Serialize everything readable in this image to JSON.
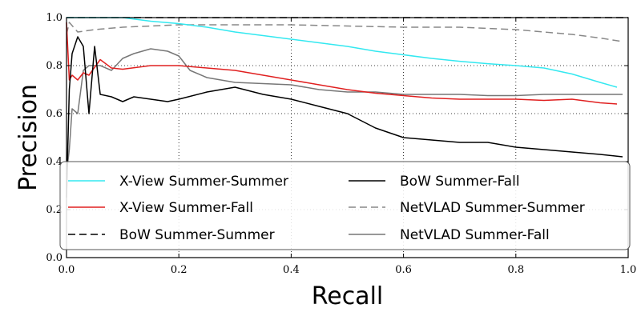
{
  "chart_data": {
    "type": "line",
    "title": "",
    "xlabel": "Recall",
    "ylabel": "Precision",
    "xlim": [
      0.0,
      1.0
    ],
    "ylim": [
      0.0,
      1.0
    ],
    "x_ticks": [
      "0.0",
      "0.2",
      "0.4",
      "0.6",
      "0.8",
      "1.0"
    ],
    "y_ticks": [
      "0.0",
      "0.2",
      "0.4",
      "0.6",
      "0.8",
      "1.0"
    ],
    "grid": true,
    "legend_position": "bottom",
    "series": [
      {
        "name": "X-View Summer-Summer",
        "color": "#33e8f0",
        "dash": "solid",
        "points": [
          [
            0.0,
            1.0
          ],
          [
            0.05,
            1.0
          ],
          [
            0.1,
            1.0
          ],
          [
            0.15,
            0.985
          ],
          [
            0.2,
            0.975
          ],
          [
            0.25,
            0.96
          ],
          [
            0.3,
            0.94
          ],
          [
            0.35,
            0.925
          ],
          [
            0.4,
            0.91
          ],
          [
            0.45,
            0.895
          ],
          [
            0.5,
            0.88
          ],
          [
            0.55,
            0.86
          ],
          [
            0.6,
            0.845
          ],
          [
            0.65,
            0.83
          ],
          [
            0.7,
            0.818
          ],
          [
            0.75,
            0.808
          ],
          [
            0.8,
            0.8
          ],
          [
            0.85,
            0.79
          ],
          [
            0.9,
            0.765
          ],
          [
            0.95,
            0.73
          ],
          [
            0.98,
            0.71
          ]
        ]
      },
      {
        "name": "X-View Summer-Fall",
        "color": "#e02020",
        "dash": "solid",
        "points": [
          [
            0.0,
            0.98
          ],
          [
            0.005,
            0.74
          ],
          [
            0.01,
            0.76
          ],
          [
            0.02,
            0.74
          ],
          [
            0.03,
            0.77
          ],
          [
            0.04,
            0.76
          ],
          [
            0.06,
            0.825
          ],
          [
            0.08,
            0.79
          ],
          [
            0.1,
            0.785
          ],
          [
            0.15,
            0.8
          ],
          [
            0.2,
            0.8
          ],
          [
            0.25,
            0.79
          ],
          [
            0.3,
            0.78
          ],
          [
            0.35,
            0.76
          ],
          [
            0.4,
            0.74
          ],
          [
            0.45,
            0.72
          ],
          [
            0.5,
            0.7
          ],
          [
            0.55,
            0.685
          ],
          [
            0.6,
            0.675
          ],
          [
            0.65,
            0.665
          ],
          [
            0.7,
            0.66
          ],
          [
            0.75,
            0.66
          ],
          [
            0.8,
            0.66
          ],
          [
            0.85,
            0.655
          ],
          [
            0.9,
            0.66
          ],
          [
            0.95,
            0.645
          ],
          [
            0.98,
            0.64
          ]
        ]
      },
      {
        "name": "BoW Summer-Summer",
        "color": "#000000",
        "dash": "dashed",
        "points": [
          [
            0.0,
            1.0
          ],
          [
            1.0,
            1.0
          ]
        ]
      },
      {
        "name": "BoW Summer-Fall",
        "color": "#000000",
        "dash": "solid",
        "points": [
          [
            0.0,
            0.25
          ],
          [
            0.005,
            0.7
          ],
          [
            0.01,
            0.85
          ],
          [
            0.02,
            0.92
          ],
          [
            0.03,
            0.88
          ],
          [
            0.04,
            0.6
          ],
          [
            0.05,
            0.88
          ],
          [
            0.06,
            0.68
          ],
          [
            0.08,
            0.67
          ],
          [
            0.1,
            0.65
          ],
          [
            0.12,
            0.67
          ],
          [
            0.15,
            0.66
          ],
          [
            0.18,
            0.65
          ],
          [
            0.2,
            0.66
          ],
          [
            0.25,
            0.69
          ],
          [
            0.3,
            0.71
          ],
          [
            0.35,
            0.68
          ],
          [
            0.4,
            0.66
          ],
          [
            0.45,
            0.63
          ],
          [
            0.5,
            0.6
          ],
          [
            0.55,
            0.54
          ],
          [
            0.6,
            0.5
          ],
          [
            0.65,
            0.49
          ],
          [
            0.7,
            0.48
          ],
          [
            0.75,
            0.48
          ],
          [
            0.8,
            0.46
          ],
          [
            0.85,
            0.45
          ],
          [
            0.9,
            0.44
          ],
          [
            0.95,
            0.43
          ],
          [
            0.99,
            0.42
          ]
        ]
      },
      {
        "name": "NetVLAD Summer-Summer",
        "color": "#888888",
        "dash": "dashed",
        "points": [
          [
            0.0,
            0.93
          ],
          [
            0.005,
            0.98
          ],
          [
            0.02,
            0.94
          ],
          [
            0.05,
            0.95
          ],
          [
            0.1,
            0.96
          ],
          [
            0.15,
            0.965
          ],
          [
            0.2,
            0.97
          ],
          [
            0.3,
            0.97
          ],
          [
            0.4,
            0.97
          ],
          [
            0.5,
            0.965
          ],
          [
            0.6,
            0.96
          ],
          [
            0.7,
            0.96
          ],
          [
            0.8,
            0.95
          ],
          [
            0.9,
            0.93
          ],
          [
            0.95,
            0.915
          ],
          [
            0.99,
            0.9
          ]
        ]
      },
      {
        "name": "NetVLAD Summer-Fall",
        "color": "#777777",
        "dash": "solid",
        "points": [
          [
            0.0,
            0.35
          ],
          [
            0.005,
            0.45
          ],
          [
            0.01,
            0.62
          ],
          [
            0.02,
            0.6
          ],
          [
            0.03,
            0.78
          ],
          [
            0.04,
            0.8
          ],
          [
            0.06,
            0.8
          ],
          [
            0.08,
            0.78
          ],
          [
            0.1,
            0.83
          ],
          [
            0.12,
            0.85
          ],
          [
            0.15,
            0.87
          ],
          [
            0.18,
            0.86
          ],
          [
            0.2,
            0.84
          ],
          [
            0.22,
            0.78
          ],
          [
            0.25,
            0.75
          ],
          [
            0.3,
            0.73
          ],
          [
            0.35,
            0.725
          ],
          [
            0.4,
            0.72
          ],
          [
            0.45,
            0.7
          ],
          [
            0.5,
            0.69
          ],
          [
            0.55,
            0.69
          ],
          [
            0.6,
            0.68
          ],
          [
            0.65,
            0.68
          ],
          [
            0.7,
            0.68
          ],
          [
            0.75,
            0.675
          ],
          [
            0.8,
            0.675
          ],
          [
            0.85,
            0.68
          ],
          [
            0.9,
            0.68
          ],
          [
            0.95,
            0.68
          ],
          [
            0.99,
            0.68
          ]
        ]
      }
    ]
  }
}
